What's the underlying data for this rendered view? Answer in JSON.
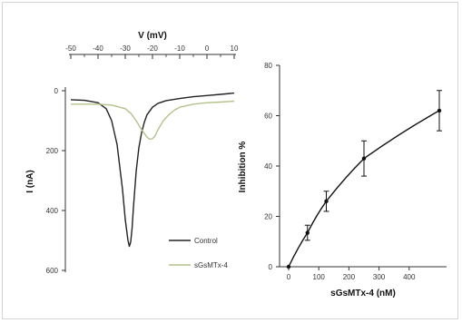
{
  "chart_data": [
    {
      "type": "line",
      "title": "",
      "xlabel_top": "V (mV)",
      "ylabel": "I (nA)",
      "x_ticks": [
        "-50",
        "-40",
        "-30",
        "-20",
        "-10",
        "0",
        "10"
      ],
      "y_ticks": [
        "0",
        "200",
        "400",
        "600"
      ],
      "xlim": [
        -50,
        10
      ],
      "ylim": [
        0,
        600
      ],
      "y_inverted": true,
      "x_axis_position": "top",
      "grid": false,
      "legend_position": "bottom-right",
      "series": [
        {
          "name": "Control",
          "color": "#222222",
          "x": [
            -50,
            -45,
            -40,
            -37,
            -35,
            -33,
            -31,
            -30,
            -29,
            -28.5,
            -28,
            -27.5,
            -27,
            -26,
            -25,
            -24,
            -23,
            -22,
            -20,
            -18,
            -15,
            -10,
            -5,
            0,
            5,
            10
          ],
          "y": [
            30,
            32,
            40,
            60,
            100,
            180,
            330,
            430,
            500,
            520,
            505,
            460,
            390,
            270,
            190,
            140,
            105,
            80,
            55,
            42,
            33,
            26,
            20,
            16,
            12,
            8
          ]
        },
        {
          "name": "sGsMTx-4",
          "color": "#b3c28a",
          "x": [
            -50,
            -40,
            -35,
            -30,
            -28,
            -26,
            -24,
            -22,
            -21,
            -20,
            -19,
            -18,
            -16,
            -14,
            -12,
            -10,
            -5,
            0,
            5,
            10
          ],
          "y": [
            45,
            45,
            48,
            60,
            75,
            100,
            130,
            155,
            162,
            160,
            150,
            130,
            100,
            80,
            65,
            55,
            45,
            40,
            38,
            35
          ]
        }
      ]
    },
    {
      "type": "line",
      "title": "",
      "xlabel": "sGsMTx-4 (nM)",
      "ylabel": "Inhibition %",
      "x_ticks": [
        "0",
        "100",
        "200",
        "300",
        "400"
      ],
      "y_ticks": [
        "0",
        "20",
        "40",
        "60",
        "80"
      ],
      "xlim": [
        0,
        500
      ],
      "ylim": [
        0,
        80
      ],
      "grid": false,
      "series": [
        {
          "name": "",
          "color": "#111111",
          "x": [
            0,
            62.5,
            125,
            250,
            500
          ],
          "y": [
            0,
            13.5,
            26,
            43,
            62
          ],
          "error": [
            0,
            3,
            4,
            7,
            8
          ]
        }
      ]
    }
  ]
}
